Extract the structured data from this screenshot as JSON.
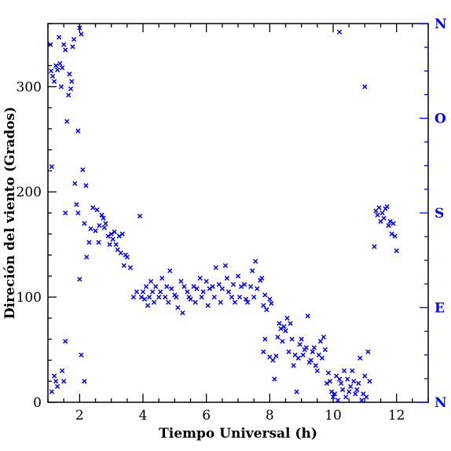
{
  "chart_data": {
    "type": "scatter",
    "xlabel": "Tiempo Universal (h)",
    "ylabel": "Direción del viento (Grados)",
    "xlim": [
      1,
      13
    ],
    "ylim": [
      0,
      360
    ],
    "x_ticks": [
      2,
      4,
      6,
      8,
      10,
      12
    ],
    "y_ticks": [
      0,
      100,
      200,
      300
    ],
    "compass_ticks": [
      {
        "value": 0,
        "label": "N"
      },
      {
        "value": 90,
        "label": "E"
      },
      {
        "value": 180,
        "label": "S"
      },
      {
        "value": 270,
        "label": "O"
      },
      {
        "value": 360,
        "label": "N"
      }
    ],
    "marker": "x",
    "color": "#0000ff",
    "grid": false,
    "series": [
      {
        "x": [
          1.08,
          1.1,
          1.12,
          1.15,
          1.2,
          1.25,
          1.3,
          1.35,
          1.38,
          1.42,
          1.45,
          1.5,
          1.55,
          1.6,
          1.65,
          1.68,
          1.72,
          1.75,
          1.78,
          1.82,
          1.85,
          1.9,
          1.95,
          2.0,
          2.05,
          2.1,
          2.15,
          2.2,
          1.12,
          1.2,
          1.25,
          1.3,
          1.45,
          1.5,
          1.55,
          1.55,
          1.95,
          2.0,
          2.05,
          2.15,
          2.22,
          2.3,
          2.35,
          2.42,
          2.5,
          2.55,
          2.6,
          2.62,
          2.7,
          2.75,
          2.78,
          2.82,
          2.9,
          2.95,
          3.0,
          3.05,
          3.1,
          3.15,
          3.2,
          3.25,
          3.3,
          3.35,
          3.4,
          3.45,
          3.5,
          3.6,
          3.7,
          3.8,
          3.9,
          3.95,
          4.0,
          4.05,
          4.1,
          4.15,
          4.2,
          4.25,
          4.3,
          4.35,
          4.4,
          4.5,
          4.55,
          4.6,
          4.7,
          4.75,
          4.8,
          4.85,
          4.9,
          5.0,
          5.05,
          5.1,
          5.2,
          5.25,
          5.3,
          5.4,
          5.45,
          5.5,
          5.6,
          5.65,
          5.7,
          5.8,
          5.85,
          5.9,
          6.0,
          6.05,
          6.1,
          6.2,
          6.25,
          6.3,
          6.4,
          6.45,
          6.5,
          6.6,
          6.65,
          6.7,
          6.8,
          6.85,
          6.9,
          7.0,
          7.05,
          7.1,
          7.2,
          7.25,
          7.3,
          7.4,
          7.45,
          7.5,
          7.55,
          7.6,
          7.7,
          7.75,
          7.8,
          7.85,
          7.9,
          8.0,
          8.05,
          7.8,
          7.85,
          8.0,
          8.1,
          8.15,
          8.2,
          8.25,
          8.3,
          8.35,
          8.4,
          8.45,
          8.5,
          8.55,
          8.6,
          8.65,
          8.7,
          8.75,
          8.8,
          8.85,
          8.9,
          8.95,
          9.0,
          9.05,
          9.1,
          9.15,
          9.2,
          9.25,
          9.3,
          9.35,
          9.4,
          9.45,
          9.5,
          9.55,
          9.6,
          9.65,
          9.7,
          9.75,
          9.8,
          9.85,
          9.9,
          9.95,
          10.0,
          10.05,
          10.1,
          10.15,
          10.2,
          10.25,
          10.3,
          10.35,
          10.4,
          10.45,
          10.5,
          10.55,
          10.6,
          10.65,
          10.7,
          10.75,
          10.8,
          10.85,
          10.9,
          10.95,
          11.0,
          11.05,
          11.1,
          11.15,
          10.2,
          11.0,
          11.3,
          11.35,
          11.4,
          11.45,
          11.5,
          11.55,
          11.6,
          11.65,
          11.7,
          11.75,
          11.8,
          11.85,
          11.9,
          11.95,
          12.0
        ],
        "y": [
          340,
          315,
          224,
          310,
          305,
          320,
          316,
          347,
          322,
          300,
          318,
          340,
          335,
          267,
          292,
          312,
          298,
          305,
          338,
          345,
          208,
          188,
          258,
          356,
          350,
          221,
          20,
          206,
          10,
          25,
          20,
          15,
          30,
          20,
          58,
          180,
          180,
          117,
          45,
          170,
          138,
          152,
          165,
          185,
          163,
          183,
          152,
          168,
          178,
          175,
          166,
          170,
          158,
          150,
          160,
          155,
          162,
          150,
          145,
          158,
          142,
          160,
          130,
          140,
          138,
          128,
          100,
          105,
          177,
          100,
          105,
          98,
          110,
          92,
          100,
          115,
          105,
          95,
          110,
          100,
          105,
          118,
          100,
          110,
          95,
          125,
          108,
          102,
          100,
          90,
          115,
          85,
          110,
          105,
          100,
          98,
          110,
          95,
          108,
          118,
          100,
          105,
          115,
          92,
          108,
          110,
          100,
          128,
          112,
          95,
          108,
          130,
          118,
          105,
          100,
          112,
          95,
          120,
          100,
          110,
          112,
          98,
          95,
          110,
          125,
          100,
          134,
          108,
          116,
          118,
          92,
          102,
          88,
          98,
          94,
          48,
          60,
          43,
          40,
          22,
          44,
          62,
          75,
          70,
          58,
          72,
          68,
          80,
          48,
          75,
          60,
          35,
          45,
          10,
          42,
          55,
          60,
          45,
          50,
          52,
          82,
          38,
          40,
          48,
          52,
          35,
          30,
          45,
          58,
          42,
          62,
          50,
          18,
          28,
          20,
          10,
          5,
          8,
          25,
          2,
          22,
          18,
          12,
          30,
          5,
          22,
          10,
          15,
          30,
          20,
          8,
          12,
          18,
          42,
          2,
          8,
          25,
          5,
          48,
          20,
          352,
          300,
          148,
          182,
          178,
          185,
          172,
          180,
          175,
          184,
          186,
          168,
          172,
          160,
          170,
          158,
          144
        ]
      }
    ]
  }
}
